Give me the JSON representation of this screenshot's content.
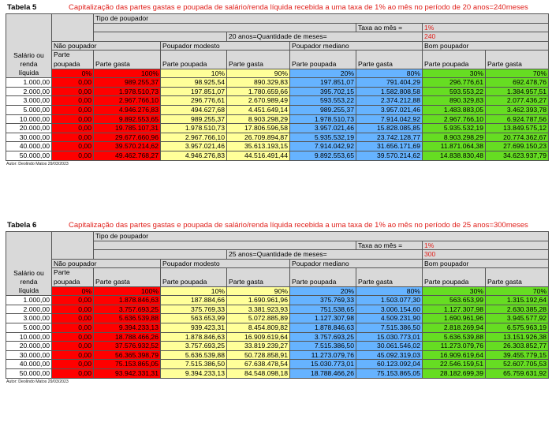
{
  "tables": [
    {
      "name": "Tabela 5",
      "title": "Capitalização das partes gastas e poupada de salário/renda líquida recebida a uma taxa  de 1% ao mês no período de 20 anos=240meses",
      "tipo_label": "Tipo de poupador",
      "taxa_label": "Taxa ao mês =",
      "taxa_value": "1%",
      "periodo_label": "20 anos=Quantidade de meses=",
      "periodo_value": "240",
      "salario_label": [
        "Salário ou",
        "renda",
        "líquida"
      ],
      "groups": [
        "Não poupador",
        "Poupador modesto",
        "Poupador mediano",
        "Bom poupador"
      ],
      "subheaders": [
        "Parte poupada",
        "Parte gasta",
        "Parte poupada",
        "Parte gasta",
        "Parte poupada",
        "Parte gasta",
        "Parte poupada",
        "Parte gasta"
      ],
      "percents": [
        "0%",
        "100%",
        "10%",
        "90%",
        "20%",
        "80%",
        "30%",
        "70%"
      ],
      "rows": [
        [
          "1.000,00",
          "0,00",
          "989.255,37",
          "98.925,54",
          "890.329,83",
          "197.851,07",
          "791.404,29",
          "296.776,61",
          "692.478,76"
        ],
        [
          "2.000,00",
          "0,00",
          "1.978.510,73",
          "197.851,07",
          "1.780.659,66",
          "395.702,15",
          "1.582.808,58",
          "593.553,22",
          "1.384.957,51"
        ],
        [
          "3.000,00",
          "0,00",
          "2.967.766,10",
          "296.776,61",
          "2.670.989,49",
          "593.553,22",
          "2.374.212,88",
          "890.329,83",
          "2.077.436,27"
        ],
        [
          "5.000,00",
          "0,00",
          "4.946.276,83",
          "494.627,68",
          "4.451.649,14",
          "989.255,37",
          "3.957.021,46",
          "1.483.883,05",
          "3.462.393,78"
        ],
        [
          "10.000,00",
          "0,00",
          "9.892.553,65",
          "989.255,37",
          "8.903.298,29",
          "1.978.510,73",
          "7.914.042,92",
          "2.967.766,10",
          "6.924.787,56"
        ],
        [
          "20.000,00",
          "0,00",
          "19.785.107,31",
          "1.978.510,73",
          "17.806.596,58",
          "3.957.021,46",
          "15.828.085,85",
          "5.935.532,19",
          "13.849.575,12"
        ],
        [
          "30.000,00",
          "0,00",
          "29.677.660,96",
          "2.967.766,10",
          "26.709.894,87",
          "5.935.532,19",
          "23.742.128,77",
          "8.903.298,29",
          "20.774.362,67"
        ],
        [
          "40.000,00",
          "0,00",
          "39.570.214,62",
          "3.957.021,46",
          "35.613.193,15",
          "7.914.042,92",
          "31.656.171,69",
          "11.871.064,38",
          "27.699.150,23"
        ],
        [
          "50.000,00",
          "0,00",
          "49.462.768,27",
          "4.946.276,83",
          "44.516.491,44",
          "9.892.553,65",
          "39.570.214,62",
          "14.838.830,48",
          "34.623.937,79"
        ]
      ],
      "author": "Autor: Deolindo Matos 29/03/2023"
    },
    {
      "name": "Tabela 6",
      "title": "Capitalização das partes gastas e poupada de salário/renda líquida recebida a uma taxa  de 1% ao mês no período de 25 anos=300meses",
      "tipo_label": "Tipo de poupador",
      "taxa_label": "Taxa ao mês =",
      "taxa_value": "1%",
      "periodo_label": "25 anos=Quantidade de meses=",
      "periodo_value": "300",
      "salario_label": [
        "Salário ou",
        "renda",
        "líquida"
      ],
      "groups": [
        "Não poupador",
        "Poupador modesto",
        "Poupador mediano",
        "Bom poupador"
      ],
      "subheaders": [
        "Parte poupada",
        "Parte gasta",
        "Parte poupada",
        "Parte gasta",
        "Parte poupada",
        "Parte gasta",
        "Parte poupada",
        "Parte gasta"
      ],
      "percents": [
        "0%",
        "100%",
        "10%",
        "90%",
        "20%",
        "80%",
        "30%",
        "70%"
      ],
      "rows": [
        [
          "1.000,00",
          "0,00",
          "1.878.846,63",
          "187.884,66",
          "1.690.961,96",
          "375.769,33",
          "1.503.077,30",
          "563.653,99",
          "1.315.192,64"
        ],
        [
          "2.000,00",
          "0,00",
          "3.757.693,25",
          "375.769,33",
          "3.381.923,93",
          "751.538,65",
          "3.006.154,60",
          "1.127.307,98",
          "2.630.385,28"
        ],
        [
          "3.000,00",
          "0,00",
          "5.636.539,88",
          "563.653,99",
          "5.072.885,89",
          "1.127.307,98",
          "4.509.231,90",
          "1.690.961,96",
          "3.945.577,92"
        ],
        [
          "5.000,00",
          "0,00",
          "9.394.233,13",
          "939.423,31",
          "8.454.809,82",
          "1.878.846,63",
          "7.515.386,50",
          "2.818.269,94",
          "6.575.963,19"
        ],
        [
          "10.000,00",
          "0,00",
          "18.788.466,26",
          "1.878.846,63",
          "16.909.619,64",
          "3.757.693,25",
          "15.030.773,01",
          "5.636.539,88",
          "13.151.926,38"
        ],
        [
          "20.000,00",
          "0,00",
          "37.576.932,52",
          "3.757.693,25",
          "33.819.239,27",
          "7.515.386,50",
          "30.061.546,02",
          "11.273.079,76",
          "26.303.852,77"
        ],
        [
          "30.000,00",
          "0,00",
          "56.365.398,79",
          "5.636.539,88",
          "50.728.858,91",
          "11.273.079,76",
          "45.092.319,03",
          "16.909.619,64",
          "39.455.779,15"
        ],
        [
          "40.000,00",
          "0,00",
          "75.153.865,05",
          "7.515.386,50",
          "67.638.478,54",
          "15.030.773,01",
          "60.123.092,04",
          "22.546.159,51",
          "52.607.705,53"
        ],
        [
          "50.000,00",
          "0,00",
          "93.942.331,31",
          "9.394.233,13",
          "84.548.098,18",
          "18.788.466,26",
          "75.153.865,05",
          "28.182.699,39",
          "65.759.631,92"
        ]
      ],
      "author": "Autor: Deolindo Matos 29/03/2023"
    }
  ]
}
